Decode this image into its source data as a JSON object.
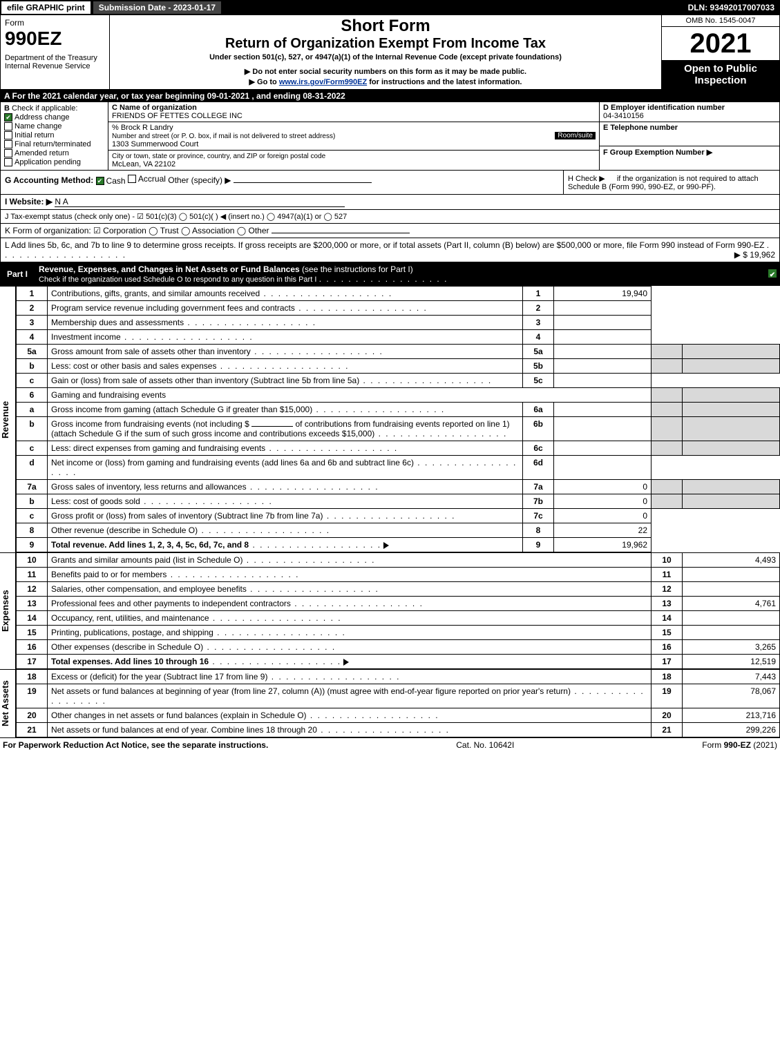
{
  "topbar": {
    "efile": "efile GRAPHIC print",
    "submission": "Submission Date - 2023-01-17",
    "dln": "DLN: 93492017007033"
  },
  "header": {
    "form_word": "Form",
    "form_number": "990EZ",
    "dept": "Department of the Treasury\nInternal Revenue Service",
    "title1": "Short Form",
    "title2": "Return of Organization Exempt From Income Tax",
    "sub1": "Under section 501(c), 527, or 4947(a)(1) of the Internal Revenue Code (except private foundations)",
    "sub2": "▶ Do not enter social security numbers on this form as it may be made public.",
    "sub3_pre": "▶ Go to ",
    "sub3_link": "www.irs.gov/Form990EZ",
    "sub3_post": " for instructions and the latest information.",
    "omb": "OMB No. 1545-0047",
    "year": "2021",
    "open": "Open to Public Inspection"
  },
  "secA": "A  For the 2021 calendar year, or tax year beginning 09-01-2021 , and ending 08-31-2022",
  "secB": {
    "label": "B",
    "check_if": "Check if applicable:",
    "items": [
      {
        "label": "Address change",
        "checked": true
      },
      {
        "label": "Name change",
        "checked": false
      },
      {
        "label": "Initial return",
        "checked": false
      },
      {
        "label": "Final return/terminated",
        "checked": false
      },
      {
        "label": "Amended return",
        "checked": false
      },
      {
        "label": "Application pending",
        "checked": false
      }
    ]
  },
  "secC": {
    "c_label": "C Name of organization",
    "org_name": "FRIENDS OF FETTES COLLEGE INC",
    "care_of": "% Brock R Landry",
    "addr_label": "Number and street (or P. O. box, if mail is not delivered to street address)",
    "room_label": "Room/suite",
    "addr": "1303 Summerwood Court",
    "city_label": "City or town, state or province, country, and ZIP or foreign postal code",
    "city": "McLean, VA  22102"
  },
  "secD": {
    "label": "D Employer identification number",
    "ein": "04-3410156",
    "e_label": "E Telephone number",
    "f_label": "F Group Exemption Number  ▶"
  },
  "secG": {
    "label": "G Accounting Method:",
    "cash": "Cash",
    "accrual": "Accrual",
    "other": "Other (specify) ▶"
  },
  "secH": {
    "text_pre": "H  Check ▶ ",
    "text_post": " if the organization is not required to attach Schedule B (Form 990, 990-EZ, or 990-PF)."
  },
  "secI": {
    "label": "I Website: ▶",
    "val": "N A"
  },
  "secJ": "J Tax-exempt status (check only one) - ☑ 501(c)(3)  ◯ 501(c)(  ) ◀ (insert no.)  ◯ 4947(a)(1) or  ◯ 527",
  "secK": "K Form of organization:  ☑ Corporation   ◯ Trust   ◯ Association   ◯ Other",
  "secL": {
    "text": "L Add lines 5b, 6c, and 7b to line 9 to determine gross receipts. If gross receipts are $200,000 or more, or if total assets (Part II, column (B) below) are $500,000 or more, file Form 990 instead of Form 990-EZ",
    "amount": "▶ $ 19,962"
  },
  "part1": {
    "label": "Part I",
    "title": "Revenue, Expenses, and Changes in Net Assets or Fund Balances",
    "note": "(see the instructions for Part I)",
    "check_note": "Check if the organization used Schedule O to respond to any question in this Part I"
  },
  "revenue": {
    "side": "Revenue",
    "rows": [
      {
        "no": "1",
        "desc": "Contributions, gifts, grants, and similar amounts received",
        "nor": "1",
        "amt": "19,940"
      },
      {
        "no": "2",
        "desc": "Program service revenue including government fees and contracts",
        "nor": "2",
        "amt": ""
      },
      {
        "no": "3",
        "desc": "Membership dues and assessments",
        "nor": "3",
        "amt": ""
      },
      {
        "no": "4",
        "desc": "Investment income",
        "nor": "4",
        "amt": ""
      }
    ],
    "r5a": {
      "no": "5a",
      "desc": "Gross amount from sale of assets other than inventory",
      "sub": "5a",
      "subamt": ""
    },
    "r5b": {
      "no": "b",
      "desc": "Less: cost or other basis and sales expenses",
      "sub": "5b",
      "subamt": ""
    },
    "r5c": {
      "no": "c",
      "desc": "Gain or (loss) from sale of assets other than inventory (Subtract line 5b from line 5a)",
      "nor": "5c",
      "amt": ""
    },
    "r6": {
      "no": "6",
      "desc": "Gaming and fundraising events"
    },
    "r6a": {
      "no": "a",
      "desc": "Gross income from gaming (attach Schedule G if greater than $15,000)",
      "sub": "6a",
      "subamt": ""
    },
    "r6b": {
      "no": "b",
      "desc1": "Gross income from fundraising events (not including $",
      "desc2": "of contributions from fundraising events reported on line 1) (attach Schedule G if the sum of such gross income and contributions exceeds $15,000)",
      "sub": "6b",
      "subamt": ""
    },
    "r6c": {
      "no": "c",
      "desc": "Less: direct expenses from gaming and fundraising events",
      "sub": "6c",
      "subamt": ""
    },
    "r6d": {
      "no": "d",
      "desc": "Net income or (loss) from gaming and fundraising events (add lines 6a and 6b and subtract line 6c)",
      "nor": "6d",
      "amt": ""
    },
    "r7a": {
      "no": "7a",
      "desc": "Gross sales of inventory, less returns and allowances",
      "sub": "7a",
      "subamt": "0"
    },
    "r7b": {
      "no": "b",
      "desc": "Less: cost of goods sold",
      "sub": "7b",
      "subamt": "0"
    },
    "r7c": {
      "no": "c",
      "desc": "Gross profit or (loss) from sales of inventory (Subtract line 7b from line 7a)",
      "nor": "7c",
      "amt": "0"
    },
    "r8": {
      "no": "8",
      "desc": "Other revenue (describe in Schedule O)",
      "nor": "8",
      "amt": "22"
    },
    "r9": {
      "no": "9",
      "desc": "Total revenue. Add lines 1, 2, 3, 4, 5c, 6d, 7c, and 8",
      "nor": "9",
      "amt": "19,962"
    }
  },
  "expenses": {
    "side": "Expenses",
    "rows": [
      {
        "no": "10",
        "desc": "Grants and similar amounts paid (list in Schedule O)",
        "nor": "10",
        "amt": "4,493"
      },
      {
        "no": "11",
        "desc": "Benefits paid to or for members",
        "nor": "11",
        "amt": ""
      },
      {
        "no": "12",
        "desc": "Salaries, other compensation, and employee benefits",
        "nor": "12",
        "amt": ""
      },
      {
        "no": "13",
        "desc": "Professional fees and other payments to independent contractors",
        "nor": "13",
        "amt": "4,761"
      },
      {
        "no": "14",
        "desc": "Occupancy, rent, utilities, and maintenance",
        "nor": "14",
        "amt": ""
      },
      {
        "no": "15",
        "desc": "Printing, publications, postage, and shipping",
        "nor": "15",
        "amt": ""
      },
      {
        "no": "16",
        "desc": "Other expenses (describe in Schedule O)",
        "nor": "16",
        "amt": "3,265"
      },
      {
        "no": "17",
        "desc": "Total expenses. Add lines 10 through 16",
        "nor": "17",
        "amt": "12,519"
      }
    ]
  },
  "netassets": {
    "side": "Net Assets",
    "rows": [
      {
        "no": "18",
        "desc": "Excess or (deficit) for the year (Subtract line 17 from line 9)",
        "nor": "18",
        "amt": "7,443"
      },
      {
        "no": "19",
        "desc": "Net assets or fund balances at beginning of year (from line 27, column (A)) (must agree with end-of-year figure reported on prior year's return)",
        "nor": "19",
        "amt": "78,067"
      },
      {
        "no": "20",
        "desc": "Other changes in net assets or fund balances (explain in Schedule O)",
        "nor": "20",
        "amt": "213,716"
      },
      {
        "no": "21",
        "desc": "Net assets or fund balances at end of year. Combine lines 18 through 20",
        "nor": "21",
        "amt": "299,226"
      }
    ]
  },
  "footer": {
    "left": "For Paperwork Reduction Act Notice, see the separate instructions.",
    "mid": "Cat. No. 10642I",
    "right_pre": "Form ",
    "right_bold": "990-EZ",
    "right_post": " (2021)"
  },
  "colors": {
    "black": "#000000",
    "white": "#ffffff",
    "shade": "#d9d9d9",
    "check_green": "#2a7a2a",
    "link": "#003399"
  }
}
